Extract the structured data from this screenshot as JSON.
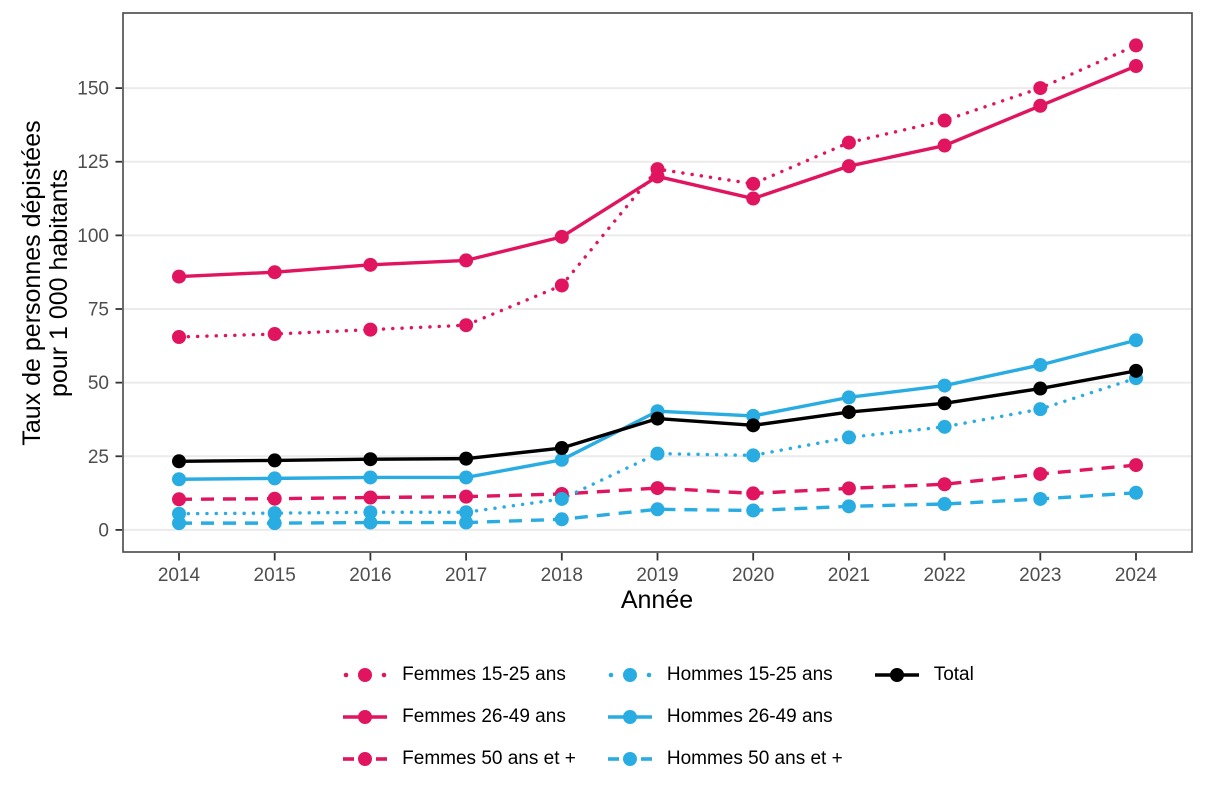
{
  "chart_data": {
    "type": "line",
    "title": "",
    "xlabel": "Année",
    "ylabel_line1": "Taux de personnes dépistées",
    "ylabel_line2": "pour 1 000 habitants",
    "x": [
      2014,
      2015,
      2016,
      2017,
      2018,
      2019,
      2020,
      2021,
      2022,
      2023,
      2024
    ],
    "y_ticks": [
      0,
      25,
      50,
      75,
      100,
      125,
      150
    ],
    "ylim": [
      -7.5,
      175.5
    ],
    "grid": "major-y",
    "legend_position": "bottom",
    "series": [
      {
        "name": "Femmes 15-25 ans",
        "color": "#E0145F",
        "linetype": "dotted",
        "values": [
          65.5,
          66.5,
          68,
          69.5,
          83,
          122.5,
          117.5,
          131.5,
          139,
          150,
          164.5
        ]
      },
      {
        "name": "Femmes 26-49 ans",
        "color": "#E0145F",
        "linetype": "solid",
        "values": [
          86,
          87.5,
          90,
          91.5,
          99.5,
          120,
          112.5,
          123.5,
          130.5,
          144,
          157.5
        ]
      },
      {
        "name": "Femmes 50 ans et +",
        "color": "#E0145F",
        "linetype": "dashed",
        "values": [
          10.4,
          10.6,
          11,
          11.3,
          12.2,
          14.2,
          12.4,
          14.1,
          15.5,
          19,
          22
        ]
      },
      {
        "name": "Hommes 15-25 ans",
        "color": "#29ACE2",
        "linetype": "dotted",
        "values": [
          5.5,
          5.7,
          6,
          6,
          10.5,
          25.9,
          25.3,
          31.4,
          35,
          41,
          51.5
        ]
      },
      {
        "name": "Hommes 26-49 ans",
        "color": "#29ACE2",
        "linetype": "solid",
        "values": [
          17.2,
          17.5,
          17.8,
          17.8,
          23.8,
          40.3,
          38.7,
          45,
          49,
          56,
          64.4
        ]
      },
      {
        "name": "Hommes 50 ans et +",
        "color": "#29ACE2",
        "linetype": "dashed",
        "values": [
          2.3,
          2.3,
          2.5,
          2.5,
          3.6,
          7,
          6.6,
          8,
          8.8,
          10.5,
          12.6
        ]
      },
      {
        "name": "Total",
        "color": "#000000",
        "linetype": "solid",
        "values": [
          23.3,
          23.6,
          24,
          24.2,
          27.8,
          37.8,
          35.5,
          40,
          43,
          48,
          54
        ]
      }
    ],
    "legend_columns": [
      [
        "Femmes 15-25 ans",
        "Femmes 26-49 ans",
        "Femmes 50 ans et +"
      ],
      [
        "Hommes 15-25 ans",
        "Hommes 26-49 ans",
        "Hommes 50 ans et +"
      ],
      [
        "Total"
      ]
    ]
  },
  "style_colors": {
    "femmes": "#E0145F",
    "hommes": "#29ACE2",
    "total": "#000000",
    "gridline": "#EBEBEB",
    "panel_border": "#474747",
    "tick_mark": "#333333",
    "tick_label": "#4D4D4D"
  }
}
